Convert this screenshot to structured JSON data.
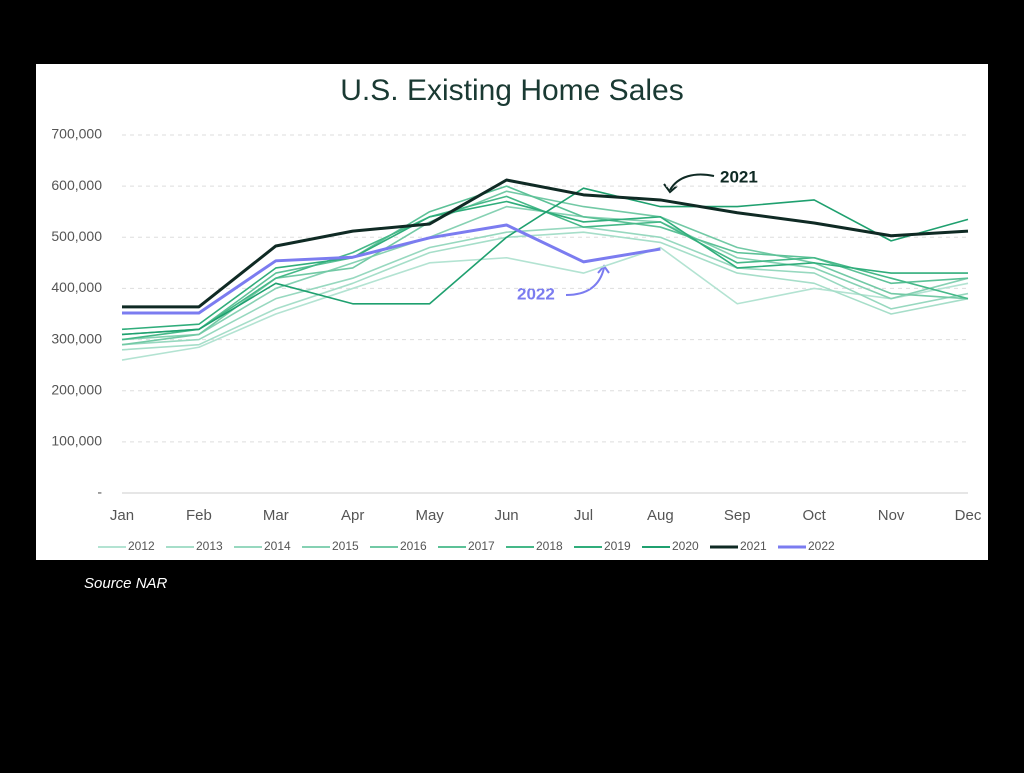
{
  "chart_data": {
    "type": "line",
    "title": "U.S. Existing Home Sales",
    "source": "Source NAR",
    "categories": [
      "Jan",
      "Feb",
      "Mar",
      "Apr",
      "May",
      "Jun",
      "Jul",
      "Aug",
      "Sep",
      "Oct",
      "Nov",
      "Dec"
    ],
    "ylim": [
      0,
      700000
    ],
    "yticks": [
      {
        "value": 0,
        "label": "-"
      },
      {
        "value": 100000,
        "label": "100,000"
      },
      {
        "value": 200000,
        "label": "200,000"
      },
      {
        "value": 300000,
        "label": "300,000"
      },
      {
        "value": 400000,
        "label": "400,000"
      },
      {
        "value": 500000,
        "label": "500,000"
      },
      {
        "value": 600000,
        "label": "600,000"
      },
      {
        "value": 700000,
        "label": "700,000"
      }
    ],
    "grid": true,
    "legend": "bottom",
    "annotations": [
      "2021",
      "2022"
    ],
    "series": [
      {
        "name": "2012",
        "color": "#b3e3d2",
        "values": [
          260000,
          285000,
          350000,
          400000,
          450000,
          460000,
          430000,
          480000,
          370000,
          400000,
          380000,
          410000
        ]
      },
      {
        "name": "2013",
        "color": "#a6dec9",
        "values": [
          280000,
          290000,
          360000,
          410000,
          470000,
          500000,
          510000,
          490000,
          430000,
          410000,
          350000,
          380000
        ]
      },
      {
        "name": "2014",
        "color": "#97d8bf",
        "values": [
          290000,
          300000,
          380000,
          420000,
          480000,
          510000,
          520000,
          500000,
          440000,
          430000,
          360000,
          390000
        ]
      },
      {
        "name": "2015",
        "color": "#86d1b3",
        "values": [
          300000,
          310000,
          400000,
          450000,
          500000,
          560000,
          540000,
          530000,
          460000,
          440000,
          380000,
          420000
        ]
      },
      {
        "name": "2016",
        "color": "#72c9a5",
        "values": [
          290000,
          310000,
          420000,
          440000,
          530000,
          590000,
          560000,
          540000,
          480000,
          450000,
          390000,
          380000
        ]
      },
      {
        "name": "2017",
        "color": "#5cc197",
        "values": [
          310000,
          320000,
          430000,
          460000,
          550000,
          600000,
          540000,
          520000,
          470000,
          460000,
          410000,
          420000
        ]
      },
      {
        "name": "2018",
        "color": "#45b888",
        "values": [
          300000,
          320000,
          420000,
          470000,
          540000,
          580000,
          520000,
          530000,
          450000,
          460000,
          420000,
          380000
        ]
      },
      {
        "name": "2019",
        "color": "#30ad7b",
        "values": [
          320000,
          330000,
          440000,
          460000,
          540000,
          570000,
          530000,
          540000,
          440000,
          450000,
          430000,
          430000
        ]
      },
      {
        "name": "2020",
        "color": "#1fa06f",
        "values": [
          310000,
          320000,
          410000,
          370000,
          370000,
          500000,
          596000,
          560000,
          560000,
          573000,
          493000,
          535000
        ]
      },
      {
        "name": "2021",
        "color": "#0f2a24",
        "values": [
          364000,
          364000,
          483000,
          512000,
          526000,
          612000,
          583000,
          573000,
          548000,
          528000,
          503000,
          512000
        ]
      },
      {
        "name": "2022",
        "color": "#7b7cf0",
        "values": [
          352000,
          352000,
          454000,
          461000,
          499000,
          524000,
          452000,
          477000,
          null,
          null,
          null,
          null
        ]
      }
    ]
  }
}
